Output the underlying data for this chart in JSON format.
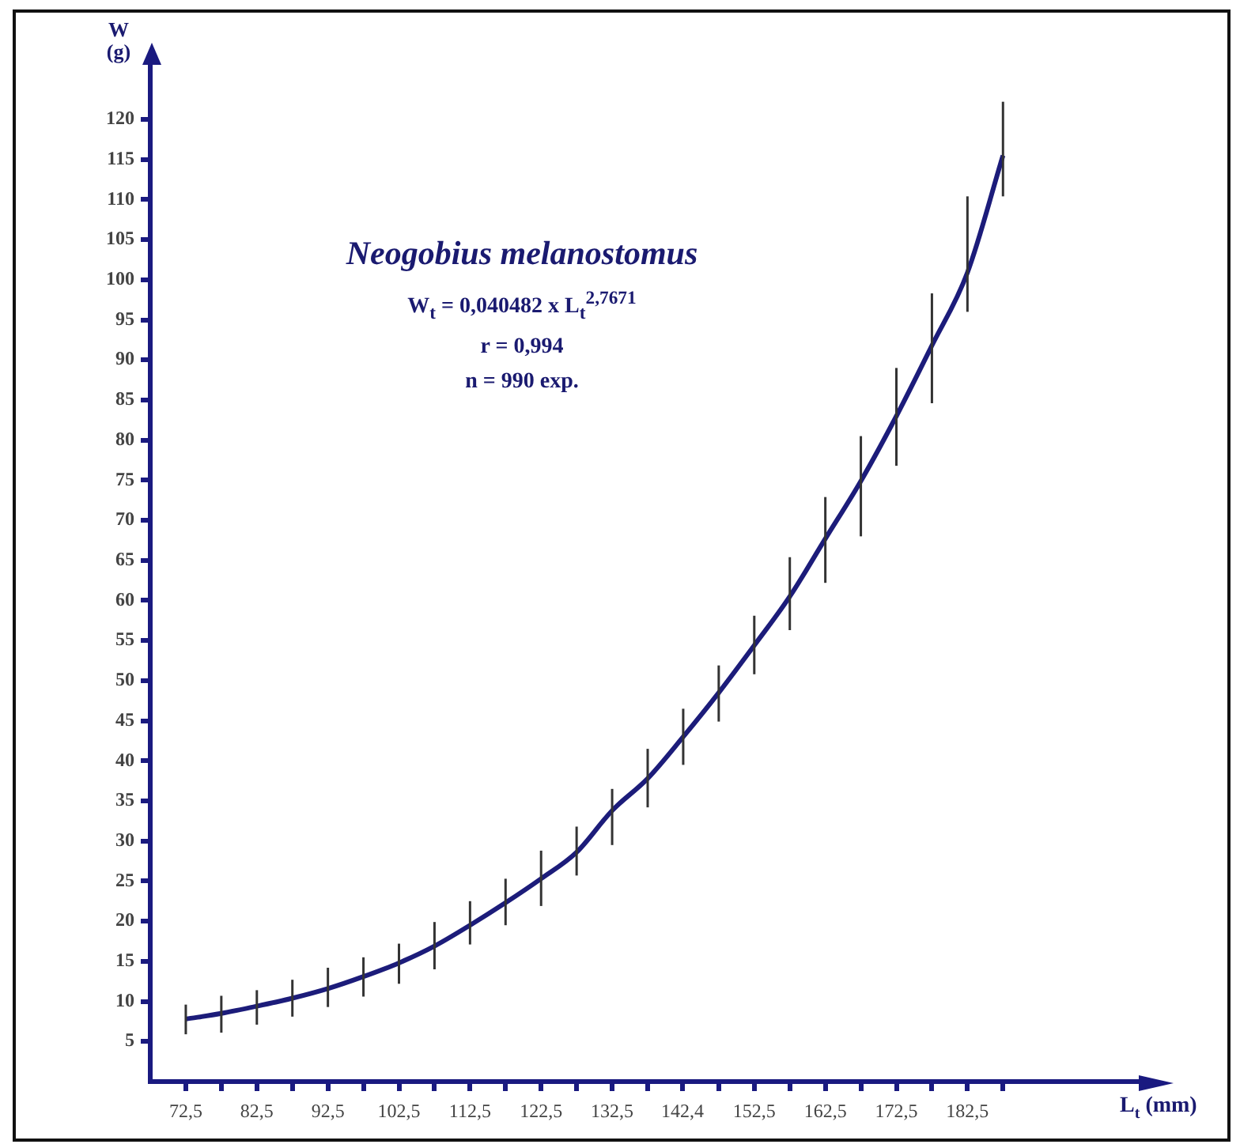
{
  "chart_data": {
    "type": "line",
    "title": "Neogobius melanostomus",
    "annotations": [
      "W$_{t}$ = 0,040482 x L$_{t}$$^{2,7671}$",
      "r = 0,994",
      "n = 990 exp."
    ],
    "xlabel": "L$_{t}$ (mm)",
    "ylabel": "W (g)",
    "x": [
      72.5,
      77.5,
      82.5,
      87.5,
      92.5,
      97.5,
      102.5,
      107.5,
      112.5,
      117.5,
      122.5,
      127.5,
      132.5,
      137.5,
      142.5,
      147.5,
      152.5,
      157.5,
      162.5,
      167.5,
      172.5,
      177.5,
      182.5,
      187.5
    ],
    "series": [
      {
        "color": "#1c1c7a",
        "values": [
          7.8,
          8.5,
          9.4,
          10.4,
          11.6,
          13.1,
          14.8,
          16.9,
          19.5,
          22.3,
          25.3,
          28.6,
          33.8,
          37.8,
          43.0,
          48.5,
          54.4,
          60.5,
          67.7,
          74.9,
          83.0,
          91.8,
          100.9,
          115.5
        ],
        "errors": [
          [
            5.9,
            9.6
          ],
          [
            6.1,
            10.7
          ],
          [
            7.1,
            11.4
          ],
          [
            8.1,
            12.7
          ],
          [
            9.3,
            14.2
          ],
          [
            10.6,
            15.5
          ],
          [
            12.2,
            17.2
          ],
          [
            14.0,
            19.9
          ],
          [
            17.1,
            22.5
          ],
          [
            19.5,
            25.3
          ],
          [
            21.9,
            28.8
          ],
          [
            25.7,
            31.8
          ],
          [
            29.5,
            36.5
          ],
          [
            34.2,
            41.5
          ],
          [
            39.5,
            46.5
          ],
          [
            44.9,
            51.9
          ],
          [
            50.8,
            58.1
          ],
          [
            56.3,
            65.4
          ],
          [
            62.2,
            72.9
          ],
          [
            68.0,
            80.5
          ],
          [
            76.8,
            89.0
          ],
          [
            84.6,
            98.3
          ],
          [
            96.0,
            110.4
          ],
          [
            110.4,
            122.2
          ]
        ]
      }
    ],
    "xlim": [
      67.5,
      207.5
    ],
    "xticks": [
      {
        "value": 72.5,
        "label": "72,5"
      },
      {
        "value": 77.5,
        "label": null
      },
      {
        "value": 82.5,
        "label": "82,5"
      },
      {
        "value": 87.5,
        "label": null
      },
      {
        "value": 92.5,
        "label": "92,5"
      },
      {
        "value": 97.5,
        "label": null
      },
      {
        "value": 102.5,
        "label": "102,5"
      },
      {
        "value": 107.5,
        "label": null
      },
      {
        "value": 112.5,
        "label": "112,5"
      },
      {
        "value": 117.5,
        "label": null
      },
      {
        "value": 122.5,
        "label": "122,5"
      },
      {
        "value": 127.5,
        "label": null
      },
      {
        "value": 132.5,
        "label": "132,5"
      },
      {
        "value": 137.5,
        "label": null
      },
      {
        "value": 142.4,
        "label": "142,4"
      },
      {
        "value": 147.5,
        "label": null
      },
      {
        "value": 152.5,
        "label": "152,5"
      },
      {
        "value": 157.5,
        "label": null
      },
      {
        "value": 162.5,
        "label": "162,5"
      },
      {
        "value": 167.5,
        "label": null
      },
      {
        "value": 172.5,
        "label": "172,5"
      },
      {
        "value": 177.5,
        "label": null
      },
      {
        "value": 182.5,
        "label": "182,5"
      },
      {
        "value": 187.5,
        "label": null
      }
    ],
    "ylim": [
      0,
      127
    ],
    "yticks": [
      5,
      10,
      15,
      20,
      25,
      30,
      35,
      40,
      45,
      50,
      55,
      60,
      65,
      70,
      75,
      80,
      85,
      90,
      95,
      100,
      105,
      110,
      115,
      120
    ],
    "marker": "none",
    "line_style": "solid"
  }
}
